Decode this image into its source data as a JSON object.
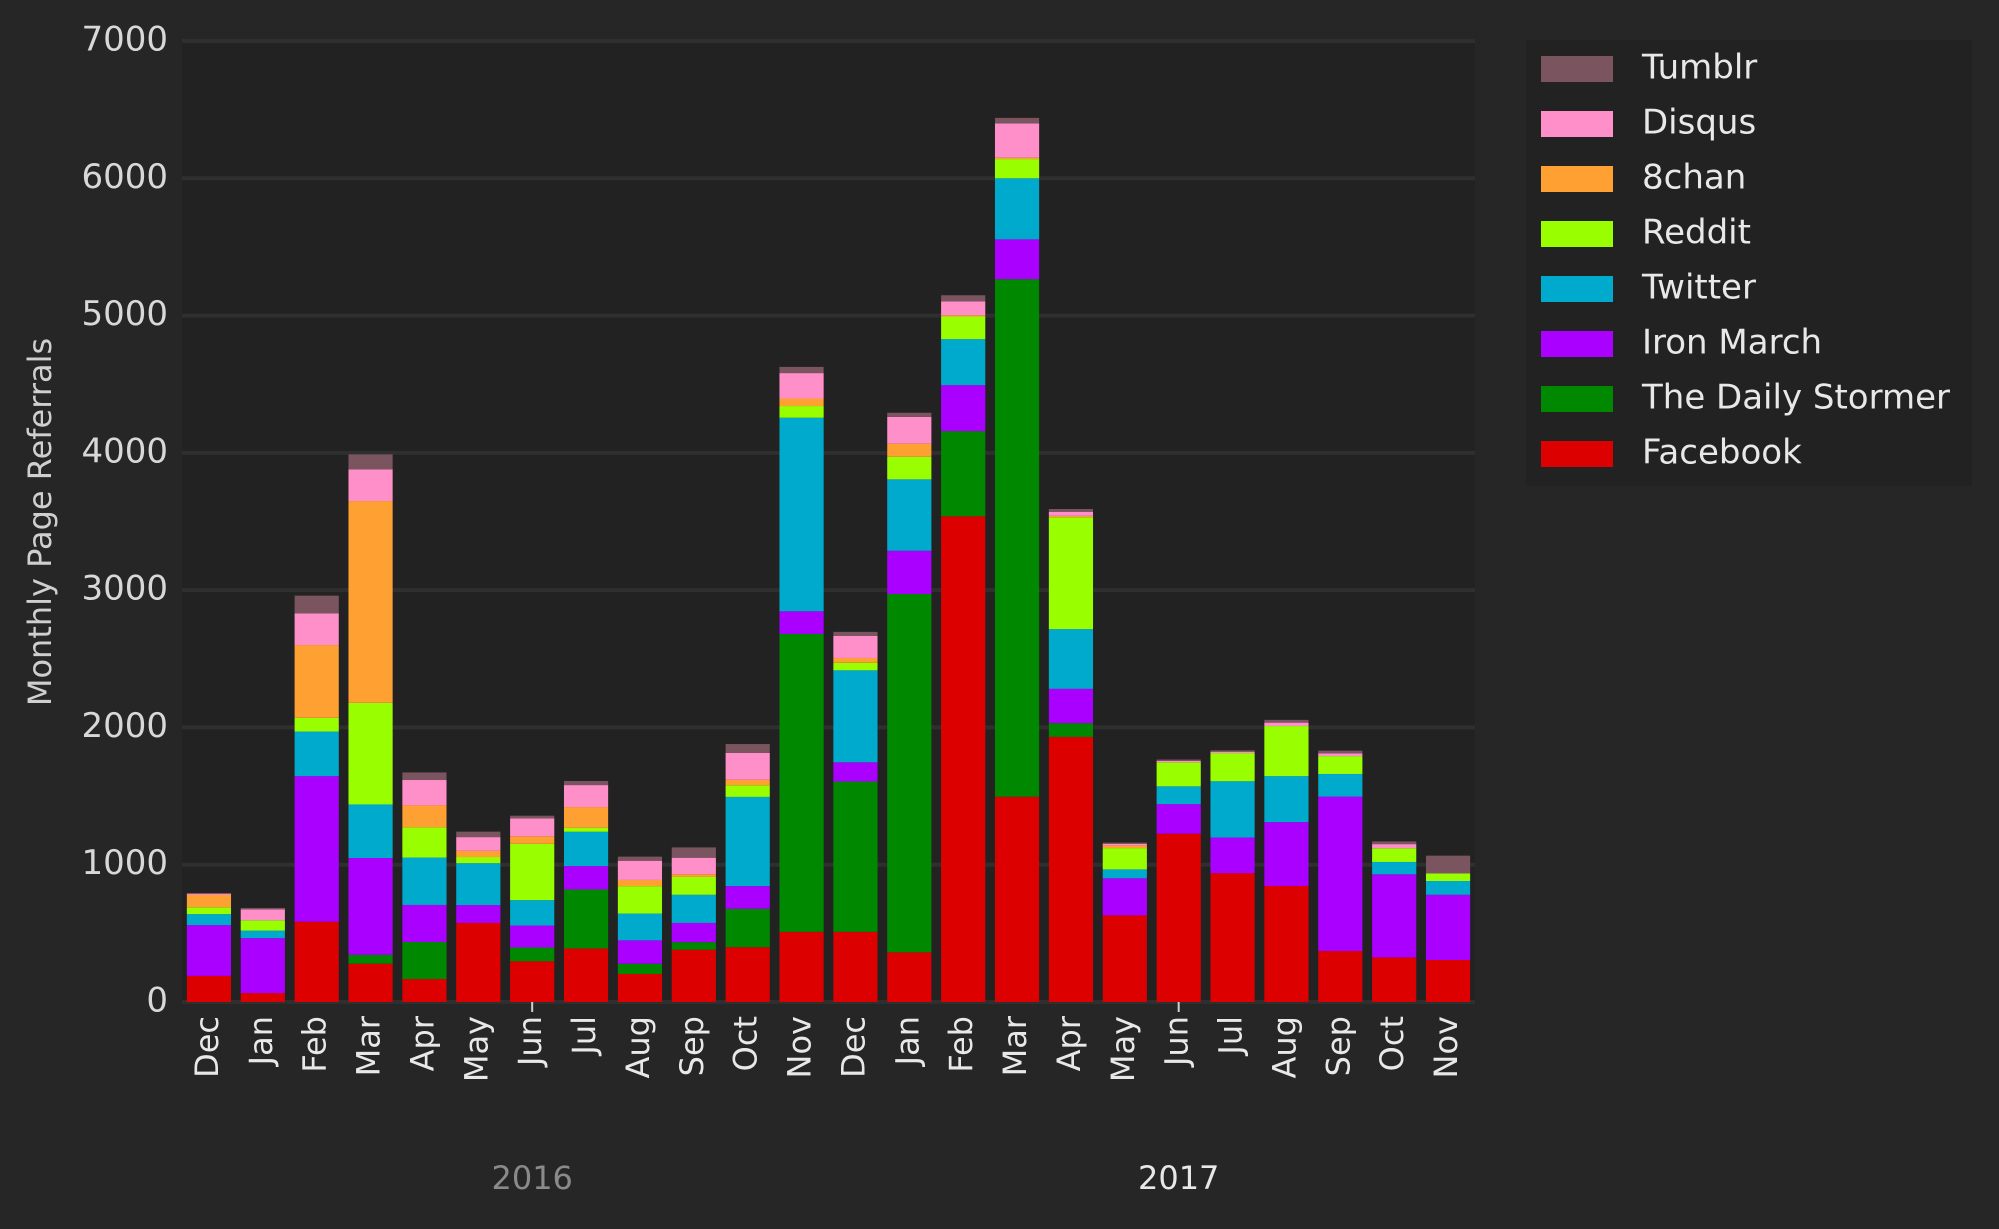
{
  "chart_data": {
    "type": "stacked-bar",
    "y_label": "Monthly Page Referrals",
    "categories": [
      "Dec",
      "Jan",
      "Feb",
      "Mar",
      "Apr",
      "May",
      "Jun",
      "Jul",
      "Aug",
      "Sep",
      "Oct",
      "Nov",
      "Dec",
      "Jan",
      "Feb",
      "Mar",
      "Apr",
      "May",
      "Jun",
      "Jul",
      "Aug",
      "Sep",
      "Oct",
      "Nov"
    ],
    "x_group_labels": [
      "2016",
      "2017"
    ],
    "ylim": [
      0,
      7000
    ],
    "yticks": [
      0,
      1000,
      2000,
      3000,
      4000,
      5000,
      6000,
      7000
    ],
    "grid": true,
    "legend": "outside-right",
    "series": [
      {
        "name": "Facebook",
        "color": "#dd0000",
        "values": [
          190,
          65,
          585,
          279,
          167,
          576,
          297,
          390,
          204,
          381,
          399,
          511,
          511,
          362,
          3538,
          1495,
          1931,
          631,
          1226,
          938,
          845,
          371,
          325,
          306
        ]
      },
      {
        "name": "The Daily Stormer",
        "color": "#008800",
        "values": [
          0,
          0,
          0,
          65,
          270,
          0,
          100,
          430,
          75,
          55,
          280,
          2170,
          1095,
          2610,
          620,
          3770,
          100,
          0,
          0,
          0,
          0,
          0,
          0,
          0
        ]
      },
      {
        "name": "Iron March",
        "color": "#aa00ff",
        "values": [
          370,
          400,
          1060,
          705,
          270,
          130,
          160,
          170,
          170,
          140,
          165,
          165,
          140,
          315,
          335,
          290,
          250,
          270,
          215,
          260,
          465,
          1125,
          605,
          475
        ]
      },
      {
        "name": "Twitter",
        "color": "#00aacc",
        "values": [
          80,
          55,
          325,
          390,
          345,
          305,
          185,
          250,
          195,
          205,
          650,
          1410,
          670,
          520,
          335,
          445,
          435,
          65,
          130,
          410,
          335,
          165,
          90,
          100
        ]
      },
      {
        "name": "Reddit",
        "color": "#99ff00",
        "values": [
          50,
          75,
          100,
          740,
          220,
          45,
          410,
          30,
          200,
          130,
          85,
          85,
          55,
          165,
          165,
          140,
          815,
          155,
          175,
          205,
          365,
          130,
          100,
          55
        ]
      },
      {
        "name": "8chan",
        "color": "#ffa033",
        "values": [
          90,
          0,
          530,
          1470,
          160,
          45,
          55,
          150,
          45,
          20,
          40,
          55,
          35,
          95,
          10,
          10,
          10,
          20,
          0,
          0,
          0,
          0,
          0,
          0
        ]
      },
      {
        "name": "Disqus",
        "color": "#ff8fc8",
        "values": [
          10,
          80,
          230,
          230,
          185,
          100,
          130,
          160,
          140,
          120,
          195,
          185,
          160,
          195,
          100,
          250,
          30,
          10,
          10,
          10,
          25,
          20,
          30,
          0
        ]
      },
      {
        "name": "Tumblr",
        "color": "#7a5560",
        "values": [
          0,
          10,
          130,
          110,
          55,
          40,
          20,
          30,
          30,
          75,
          65,
          45,
          30,
          30,
          45,
          40,
          20,
          10,
          10,
          10,
          20,
          20,
          20,
          130
        ]
      }
    ]
  }
}
